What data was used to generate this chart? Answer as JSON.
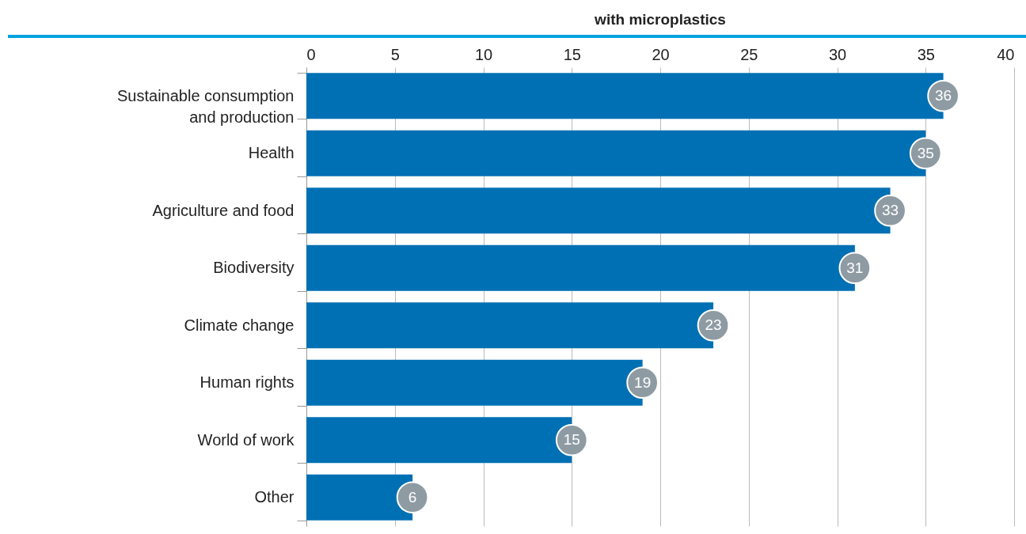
{
  "chart_data": {
    "type": "bar",
    "orientation": "horizontal",
    "title": "with microplastics",
    "categories": [
      "Sustainable consumption\nand production",
      "Health",
      "Agriculture and food",
      "Biodiversity",
      "Climate change",
      "Human rights",
      "World of work",
      "Other"
    ],
    "values": [
      36,
      35,
      33,
      31,
      23,
      19,
      15,
      6
    ],
    "color": "#0070b4",
    "xlim": [
      0,
      40
    ],
    "xticks": [
      0,
      5,
      10,
      15,
      20,
      25,
      30,
      35,
      40
    ],
    "grid": "x",
    "data_labels": true
  }
}
